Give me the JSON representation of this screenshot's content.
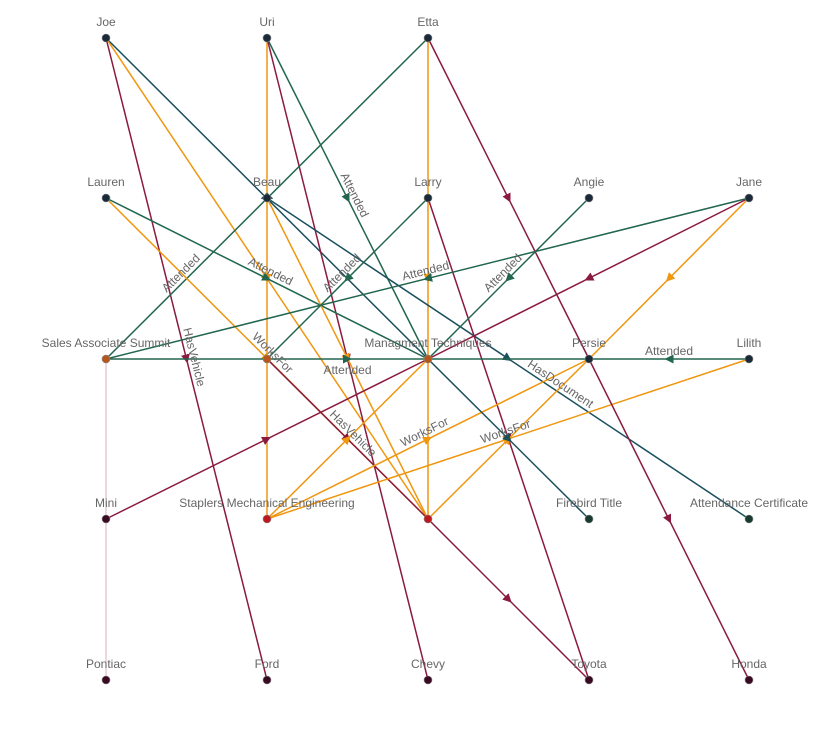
{
  "colors": {
    "attended": "#22664f",
    "document": "#1a4f5e",
    "worksfor": "#f0960f",
    "vehicle": "#8b1a3f",
    "vertical": "#d9b3c0"
  },
  "nodes": [
    {
      "id": "joe",
      "label": "Joe",
      "col": 0,
      "row": 0,
      "color": "#1b2a38"
    },
    {
      "id": "uri",
      "label": "Uri",
      "col": 1,
      "row": 0,
      "color": "#1b2a38"
    },
    {
      "id": "etta",
      "label": "Etta",
      "col": 2,
      "row": 0,
      "color": "#1b2a38"
    },
    {
      "id": "lauren",
      "label": "Lauren",
      "col": 0,
      "row": 1,
      "color": "#1b2a38"
    },
    {
      "id": "beau",
      "label": "Beau",
      "col": 1,
      "row": 1,
      "color": "#1b2a38"
    },
    {
      "id": "larry",
      "label": "Larry",
      "col": 2,
      "row": 1,
      "color": "#1b2a38"
    },
    {
      "id": "angie",
      "label": "Angie",
      "col": 3,
      "row": 1,
      "color": "#1b2a38"
    },
    {
      "id": "jane",
      "label": "Jane",
      "col": 4,
      "row": 1,
      "color": "#1b2a38"
    },
    {
      "id": "summit",
      "label": "Sales Associate Summit",
      "col": 0,
      "row": 2,
      "color": "#b5561c"
    },
    {
      "id": "n21",
      "label": "",
      "col": 1,
      "row": 2,
      "color": "#b5561c"
    },
    {
      "id": "mgmt",
      "label": "Managment Techniques",
      "col": 2,
      "row": 2,
      "color": "#b5561c"
    },
    {
      "id": "persie",
      "label": "Persie",
      "col": 3,
      "row": 2,
      "color": "#1b2a38"
    },
    {
      "id": "lilith",
      "label": "Lilith",
      "col": 4,
      "row": 2,
      "color": "#1b2a38"
    },
    {
      "id": "mini",
      "label": "Mini",
      "col": 0,
      "row": 3,
      "color": "#3a0a22"
    },
    {
      "id": "staplers",
      "label": "Staplers Mechanical Engineering",
      "col": 1,
      "row": 3,
      "color": "#c0161e"
    },
    {
      "id": "n23",
      "label": "",
      "col": 2,
      "row": 3,
      "color": "#c0161e"
    },
    {
      "id": "firebird",
      "label": "Firebird Title",
      "col": 3,
      "row": 3,
      "color": "#183a30"
    },
    {
      "id": "cert",
      "label": "Attendance Certificate",
      "col": 4,
      "row": 3,
      "color": "#183a30"
    },
    {
      "id": "pontiac",
      "label": "Pontiac",
      "col": 0,
      "row": 4,
      "color": "#3a0a22"
    },
    {
      "id": "ford",
      "label": "Ford",
      "col": 1,
      "row": 4,
      "color": "#3a0a22"
    },
    {
      "id": "chevy",
      "label": "Chevy",
      "col": 2,
      "row": 4,
      "color": "#3a0a22"
    },
    {
      "id": "toyota",
      "label": "Toyota",
      "col": 3,
      "row": 4,
      "color": "#3a0a22"
    },
    {
      "id": "honda",
      "label": "Honda",
      "col": 4,
      "row": 4,
      "color": "#3a0a22"
    }
  ],
  "edges": [
    {
      "from": "summit",
      "to": "pontiac",
      "type": "vertical",
      "label": ""
    },
    {
      "from": "joe",
      "to": "mgmt",
      "type": "document",
      "label": ""
    },
    {
      "from": "joe",
      "to": "n23",
      "type": "worksfor",
      "label": ""
    },
    {
      "from": "joe",
      "to": "ford",
      "type": "vehicle",
      "label": "HasVehicle"
    },
    {
      "from": "uri",
      "to": "staplers",
      "type": "worksfor",
      "label": ""
    },
    {
      "from": "uri",
      "to": "chevy",
      "type": "vehicle",
      "label": ""
    },
    {
      "from": "uri",
      "to": "mgmt",
      "type": "attended",
      "label": "Attended"
    },
    {
      "from": "etta",
      "to": "summit",
      "type": "attended",
      "label": "Attended"
    },
    {
      "from": "etta",
      "to": "n23",
      "type": "worksfor",
      "label": ""
    },
    {
      "from": "etta",
      "to": "persie",
      "type": "vehicle",
      "label": ""
    },
    {
      "from": "lauren",
      "to": "mgmt",
      "type": "attended",
      "label": "Attended"
    },
    {
      "from": "lauren",
      "to": "n23",
      "type": "worksfor",
      "label": "WorksFor"
    },
    {
      "from": "beau",
      "to": "cert",
      "type": "document",
      "label": "HasDocument"
    },
    {
      "from": "beau",
      "to": "n23",
      "type": "worksfor",
      "label": ""
    },
    {
      "from": "n21",
      "to": "n23",
      "type": "vehicle",
      "label": "HasVehicle"
    },
    {
      "from": "larry",
      "to": "n21",
      "type": "attended",
      "label": "Attended"
    },
    {
      "from": "larry",
      "to": "toyota",
      "type": "vehicle",
      "label": ""
    },
    {
      "from": "angie",
      "to": "mgmt",
      "type": "attended",
      "label": "Attended"
    },
    {
      "from": "jane",
      "to": "summit",
      "type": "attended",
      "label": "Attended"
    },
    {
      "from": "jane",
      "to": "mgmt",
      "type": "vehicle",
      "label": ""
    },
    {
      "from": "jane",
      "to": "persie",
      "type": "worksfor",
      "label": ""
    },
    {
      "from": "summit",
      "to": "persie",
      "type": "attended",
      "label": "Attended"
    },
    {
      "from": "lilith",
      "to": "persie",
      "type": "attended",
      "label": "Attended"
    },
    {
      "from": "mini",
      "to": "mgmt",
      "type": "vehicle",
      "label": ""
    },
    {
      "from": "staplers",
      "to": "persie",
      "type": "worksfor",
      "label": "WorksFor"
    },
    {
      "from": "staplers",
      "to": "lilith",
      "type": "worksfor",
      "label": "WorksFor"
    },
    {
      "from": "staplers",
      "to": "mgmt",
      "type": "worksfor",
      "label": ""
    },
    {
      "from": "n23",
      "to": "persie",
      "type": "worksfor",
      "label": ""
    },
    {
      "from": "n23",
      "to": "toyota",
      "type": "vehicle",
      "label": ""
    },
    {
      "from": "mgmt",
      "to": "firebird",
      "type": "document",
      "label": ""
    },
    {
      "from": "persie",
      "to": "honda",
      "type": "vehicle",
      "label": ""
    }
  ]
}
